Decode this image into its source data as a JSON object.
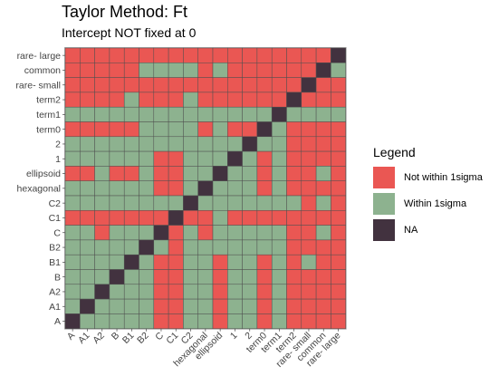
{
  "chart_data": {
    "type": "heatmap",
    "title": "Taylor Method: Ft",
    "subtitle": "Intercept NOT fixed at 0",
    "xlabel": "",
    "ylabel": "",
    "categories": [
      "A",
      "A1",
      "A2",
      "B",
      "B1",
      "B2",
      "C",
      "C1",
      "C2",
      "hexagonal",
      "ellipsoid",
      "1",
      "2",
      "term0",
      "term1",
      "term2",
      "rare- small",
      "common",
      "rare- large"
    ],
    "legend": {
      "title": "Legend",
      "position": "right",
      "entries": [
        {
          "code": "N",
          "label": "Not within 1sigma",
          "color": "#EA5753"
        },
        {
          "code": "W",
          "label": "Within 1sigma",
          "color": "#8DB28F"
        },
        {
          "code": "X",
          "label": "NA",
          "color": "#42323F"
        }
      ]
    },
    "matrix_rows_top_to_bottom": [
      "NNNNNNNNNNNNNNNNNNX",
      "NNNNNWWWWNWNNNNNNXW",
      "NNNNNNNNNNNNNNNNXNN",
      "NNNNWNNNWNNNNNNXNNN",
      "WWWWWWWWWWWWWWXWWWW",
      "NNNNNWWWWNWNNXWNNNN",
      "WWWWWWWWWWWWXWWNNNN",
      "WWWWWWNNWWWXWNWNNNN",
      "NNWNNWNNWWXWWNWNNWN",
      "WWWWWWNNWXWWWNWNNNN",
      "WWWWWWWWXWWWWWWWNWN",
      "NNNNNNNXNNWNNNNNNNN",
      "WWNWWWXNWNWWWWWNNWN",
      "WWWWWXWNWWWWWWWNNNN",
      "WWWWXWNNWWNWWNWNWNN",
      "WWWXWWNNWWNWWNWNNNN",
      "WWXWWWNNWWNWWNWNNNN",
      "WXWWWWNNWWNWWNWNNNN",
      "XWWWWWNNWWNWWNWNNNN"
    ]
  }
}
